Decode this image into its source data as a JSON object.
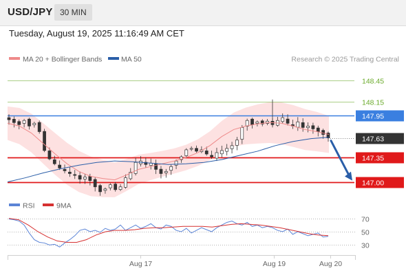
{
  "header": {
    "symbol": "USD/JPY",
    "timeframe": "30 MIN"
  },
  "datetime": "Tuesday, August 19, 2025 11:16:49 AM CET",
  "legend": {
    "ma20": "MA 20 + Bollinger Bands",
    "ma50": "MA 50",
    "credit": "Research © 2025 Trading Central"
  },
  "rsi_legend": {
    "rsi": "RSI",
    "ma9": "9MA"
  },
  "colors": {
    "ma20": "#ef8a8a",
    "ma50": "#2a5ea8",
    "band_fill": "#fde1e1",
    "resistance": "#6aaa2a",
    "pivot": "#3a7fe0",
    "support": "#e0191a",
    "current": "#333333",
    "arrow": "#2a5ea8",
    "rsi": "#5b84d6",
    "rsi_ma": "#d63030"
  },
  "chart_data": [
    {
      "type": "candlestick",
      "title": "USD/JPY 30 MIN",
      "ylim": [
        146.8,
        148.62
      ],
      "x_ticks": [
        "Aug 17",
        "Aug 19",
        "Aug 20"
      ],
      "current_price": 147.63,
      "levels": [
        {
          "label": "148.45",
          "value": 148.45,
          "kind": "resistance"
        },
        {
          "label": "148.15",
          "value": 148.15,
          "kind": "resistance"
        },
        {
          "label": "147.95",
          "value": 147.95,
          "kind": "pivot"
        },
        {
          "label": "147.35",
          "value": 147.35,
          "kind": "support"
        },
        {
          "label": "147.00",
          "value": 147.0,
          "kind": "support"
        }
      ],
      "projection": {
        "from": 147.63,
        "to": 147.03
      },
      "close_path": [
        147.89,
        147.85,
        147.82,
        147.88,
        147.8,
        147.84,
        147.72,
        147.45,
        147.33,
        147.26,
        147.2,
        147.16,
        147.12,
        147.1,
        147.04,
        147.07,
        147.02,
        146.93,
        146.86,
        146.9,
        146.96,
        146.89,
        146.93,
        147.06,
        147.14,
        147.28,
        147.3,
        147.25,
        147.27,
        147.18,
        147.12,
        147.15,
        147.22,
        147.3,
        147.36,
        147.46,
        147.48,
        147.44,
        147.46,
        147.4,
        147.36,
        147.42,
        147.45,
        147.48,
        147.52,
        147.6,
        147.78,
        147.88,
        147.82,
        147.86,
        147.83,
        147.87,
        147.82,
        147.88,
        147.92,
        147.84,
        147.8,
        147.86,
        147.78,
        147.8,
        147.76,
        147.72,
        147.68,
        147.63
      ],
      "series": [
        {
          "name": "MA 20",
          "values": [
            147.84,
            147.8,
            147.7,
            147.55,
            147.4,
            147.26,
            147.15,
            147.08,
            147.05,
            147.03,
            147.1,
            147.18,
            147.22,
            147.26,
            147.3,
            147.35,
            147.42,
            147.52,
            147.65,
            147.75,
            147.8,
            147.83,
            147.85,
            147.84,
            147.8,
            147.75,
            147.72,
            147.68
          ]
        },
        {
          "name": "MA 50",
          "values": [
            147.0,
            147.06,
            147.13,
            147.19,
            147.24,
            147.28,
            147.3,
            147.29,
            147.27,
            147.25,
            147.26,
            147.28,
            147.32,
            147.38,
            147.44,
            147.52,
            147.58,
            147.62,
            147.64
          ]
        }
      ]
    },
    {
      "type": "line",
      "title": "RSI",
      "ylim": [
        20,
        80
      ],
      "y_ticks": [
        70,
        50,
        30
      ],
      "series": [
        {
          "name": "RSI",
          "values": [
            69,
            68,
            66,
            60,
            48,
            38,
            34,
            33,
            30,
            31,
            27,
            33,
            38,
            44,
            52,
            54,
            50,
            52,
            49,
            55,
            52,
            54,
            60,
            52,
            56,
            60,
            55,
            58,
            62,
            56,
            54,
            60,
            58,
            52,
            50,
            55,
            48,
            52,
            56,
            53,
            50,
            56,
            60,
            64,
            66,
            62,
            60,
            64,
            58,
            60,
            56,
            58,
            56,
            52,
            50,
            54,
            46,
            50,
            47,
            44,
            46,
            48,
            42,
            43
          ]
        },
        {
          "name": "9MA",
          "values": [
            70,
            68,
            60,
            50,
            42,
            36,
            34,
            34,
            38,
            45,
            50,
            52,
            52,
            53,
            55,
            56,
            56,
            57,
            58,
            58,
            58,
            57,
            59,
            61,
            62,
            61,
            60,
            58,
            56,
            53,
            50,
            47,
            45,
            44
          ]
        }
      ]
    }
  ]
}
